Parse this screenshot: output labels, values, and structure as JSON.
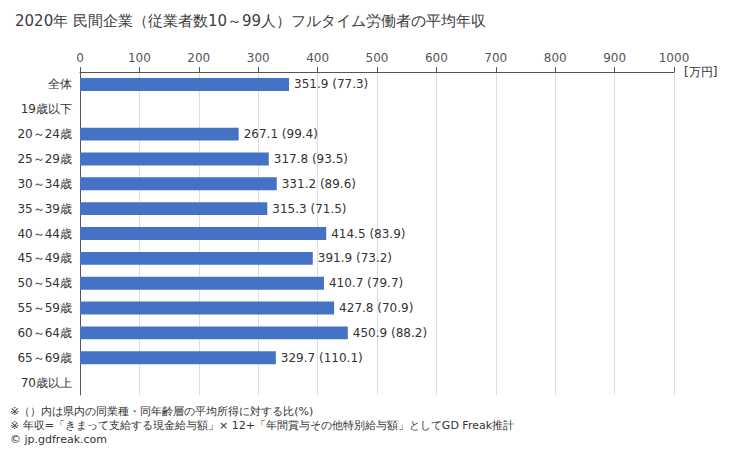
{
  "chart_data": {
    "type": "bar",
    "orientation": "horizontal",
    "title": "2020年 民間企業（従業者数10～99人）フルタイム労働者の平均年収",
    "xlabel": "[万円]",
    "categories": [
      "全体",
      "19歳以下",
      "20～24歳",
      "25～29歳",
      "30～34歳",
      "35～39歳",
      "40～44歳",
      "45～49歳",
      "50～54歳",
      "55～59歳",
      "60～64歳",
      "65～69歳",
      "70歳以上"
    ],
    "values": [
      351.9,
      null,
      267.1,
      317.8,
      331.2,
      315.3,
      414.5,
      391.9,
      410.7,
      427.8,
      450.9,
      329.7,
      null
    ],
    "value_labels": [
      "351.9 (77.3)",
      null,
      "267.1 (99.4)",
      "317.8 (93.5)",
      "331.2 (89.6)",
      "315.3 (71.5)",
      "414.5 (83.9)",
      "391.9 (73.2)",
      "410.7 (79.7)",
      "427.8 (70.9)",
      "450.9 (88.2)",
      "329.7 (110.1)",
      null
    ],
    "data_labels": true,
    "color": "#4472c4",
    "xlim": [
      0,
      1000
    ],
    "xticks": [
      0,
      100,
      200,
      300,
      400,
      500,
      600,
      700,
      800,
      900,
      1000
    ],
    "grid": true,
    "annotations": [
      "※（）内は県内の同業種・同年齢層の平均所得に対する比(%)",
      "※ 年収=「きまって支給する現金給与額」× 12+「年間賞与その他特別給与額」としてGD Freak推計",
      "© jp.gdfreak.com"
    ]
  }
}
